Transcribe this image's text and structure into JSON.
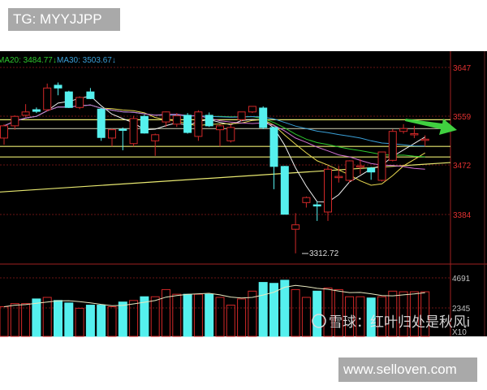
{
  "watermarks": {
    "tg": "TG: MYYJJPP",
    "site": "www.selloven.com",
    "xueqiu": "雪球：红叶归处是秋风i"
  },
  "header": {
    "ma20_label": "MA20: 3484.77↓",
    "ma30_label": "MA30: 3503.67↓"
  },
  "colors": {
    "up": "#d02828",
    "down": "#55f0ee",
    "ma20": "#2ec82e",
    "ma30": "#3aa0d8",
    "background": "#000000",
    "level_line": "#e8e870",
    "arrow": "#40d040"
  },
  "chart_data": [
    {
      "type": "candlestick",
      "title": "",
      "y_ticks": [
        "3647",
        "3559",
        "3472",
        "3384"
      ],
      "ylim": [
        3300,
        3670
      ],
      "low_annotation": "3312.72",
      "ohlc": [
        [
          3520,
          3545,
          3508,
          3542
        ],
        [
          3542,
          3561,
          3535,
          3559
        ],
        [
          3561,
          3581,
          3558,
          3567
        ],
        [
          3571,
          3575,
          3565,
          3568
        ],
        [
          3571,
          3618,
          3568,
          3610
        ],
        [
          3615,
          3620,
          3597,
          3610
        ],
        [
          3603,
          3605,
          3574,
          3575
        ],
        [
          3575,
          3595,
          3572,
          3593
        ],
        [
          3603,
          3610,
          3590,
          3591
        ],
        [
          3572,
          3575,
          3515,
          3521
        ],
        [
          3520,
          3537,
          3505,
          3535
        ],
        [
          3536,
          3539,
          3498,
          3535
        ],
        [
          3510,
          3560,
          3505,
          3555
        ],
        [
          3559,
          3562,
          3528,
          3529
        ],
        [
          3515,
          3528,
          3488,
          3526
        ],
        [
          3549,
          3568,
          3540,
          3567
        ],
        [
          3545,
          3565,
          3540,
          3560
        ],
        [
          3561,
          3565,
          3528,
          3530
        ],
        [
          3523,
          3570,
          3515,
          3567
        ],
        [
          3561,
          3566,
          3540,
          3542
        ],
        [
          3535,
          3545,
          3505,
          3542
        ],
        [
          3515,
          3545,
          3512,
          3539
        ],
        [
          3553,
          3567,
          3550,
          3567
        ],
        [
          3567,
          3577,
          3565,
          3577
        ],
        [
          3574,
          3577,
          3536,
          3539
        ],
        [
          3539,
          3541,
          3428,
          3469
        ],
        [
          3469,
          3470,
          3383,
          3383
        ],
        [
          3356,
          3385,
          3312.72,
          3364
        ],
        [
          3404,
          3415,
          3395,
          3413
        ],
        [
          3400,
          3406,
          3371,
          3399
        ],
        [
          3387,
          3470,
          3371,
          3464
        ],
        [
          3450,
          3470,
          3440,
          3451
        ],
        [
          3444,
          3480,
          3440,
          3479
        ],
        [
          3469,
          3482,
          3455,
          3470
        ],
        [
          3466,
          3468,
          3445,
          3459
        ],
        [
          3444,
          3495,
          3442,
          3495
        ],
        [
          3480,
          3536,
          3478,
          3532
        ],
        [
          3532,
          3545,
          3528,
          3537
        ],
        [
          3527,
          3542,
          3520,
          3528
        ],
        [
          3517,
          3525,
          3505,
          3518
        ]
      ],
      "level_lines": [
        3553,
        3537,
        3505,
        3486
      ],
      "trend_line": [
        3423,
        3476
      ]
    },
    {
      "type": "bar",
      "title": "",
      "y_ticks": [
        "4691",
        "2345"
      ],
      "unit_label": "X10",
      "ylim": [
        0,
        5200
      ],
      "values": [
        2441,
        2684,
        2684,
        3048,
        3170,
        2927,
        2733,
        2320,
        2563,
        2563,
        2441,
        2806,
        2927,
        3219,
        3219,
        3777,
        3413,
        3413,
        3413,
        3413,
        3170,
        2563,
        3048,
        3656,
        4336,
        4264,
        4507,
        3777,
        3170,
        3656,
        3900,
        3777,
        3219,
        3219,
        3121,
        3219,
        3656,
        3607,
        3607,
        3607
      ]
    }
  ]
}
